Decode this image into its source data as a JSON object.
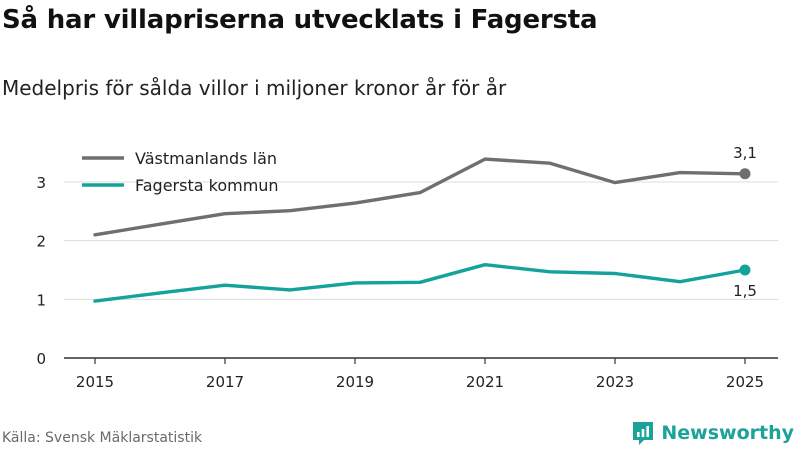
{
  "title": "Så har villapriserna utvecklats i Fagersta",
  "subtitle": "Medelpris för sålda villor i miljoner kronor år för år",
  "source": "Källa: Svensk Mäklarstatistik",
  "brand": {
    "name": "Newsworthy",
    "icon": "newsworthy-logo-icon",
    "color": "#1aa39a"
  },
  "chart_data": {
    "type": "line",
    "x": [
      2015,
      2016,
      2017,
      2018,
      2019,
      2020,
      2021,
      2022,
      2023,
      2024,
      2025
    ],
    "x_tick_labels": [
      "2015",
      "2017",
      "2019",
      "2021",
      "2023",
      "2025"
    ],
    "y_tick_labels": [
      "0",
      "1",
      "2",
      "3"
    ],
    "ylim": [
      0,
      3.5
    ],
    "grid": true,
    "legend_position": "top-left",
    "series": [
      {
        "name": "Västmanlands län",
        "color": "#6f6e72",
        "values": [
          2.1,
          2.28,
          2.46,
          2.51,
          2.64,
          2.82,
          3.39,
          3.32,
          2.99,
          3.16,
          3.14
        ],
        "end_label": "3,1"
      },
      {
        "name": "Fagersta kommun",
        "color": "#14a39a",
        "values": [
          0.97,
          1.11,
          1.24,
          1.16,
          1.28,
          1.29,
          1.59,
          1.47,
          1.44,
          1.3,
          1.5
        ],
        "end_label": "1,5"
      }
    ]
  }
}
